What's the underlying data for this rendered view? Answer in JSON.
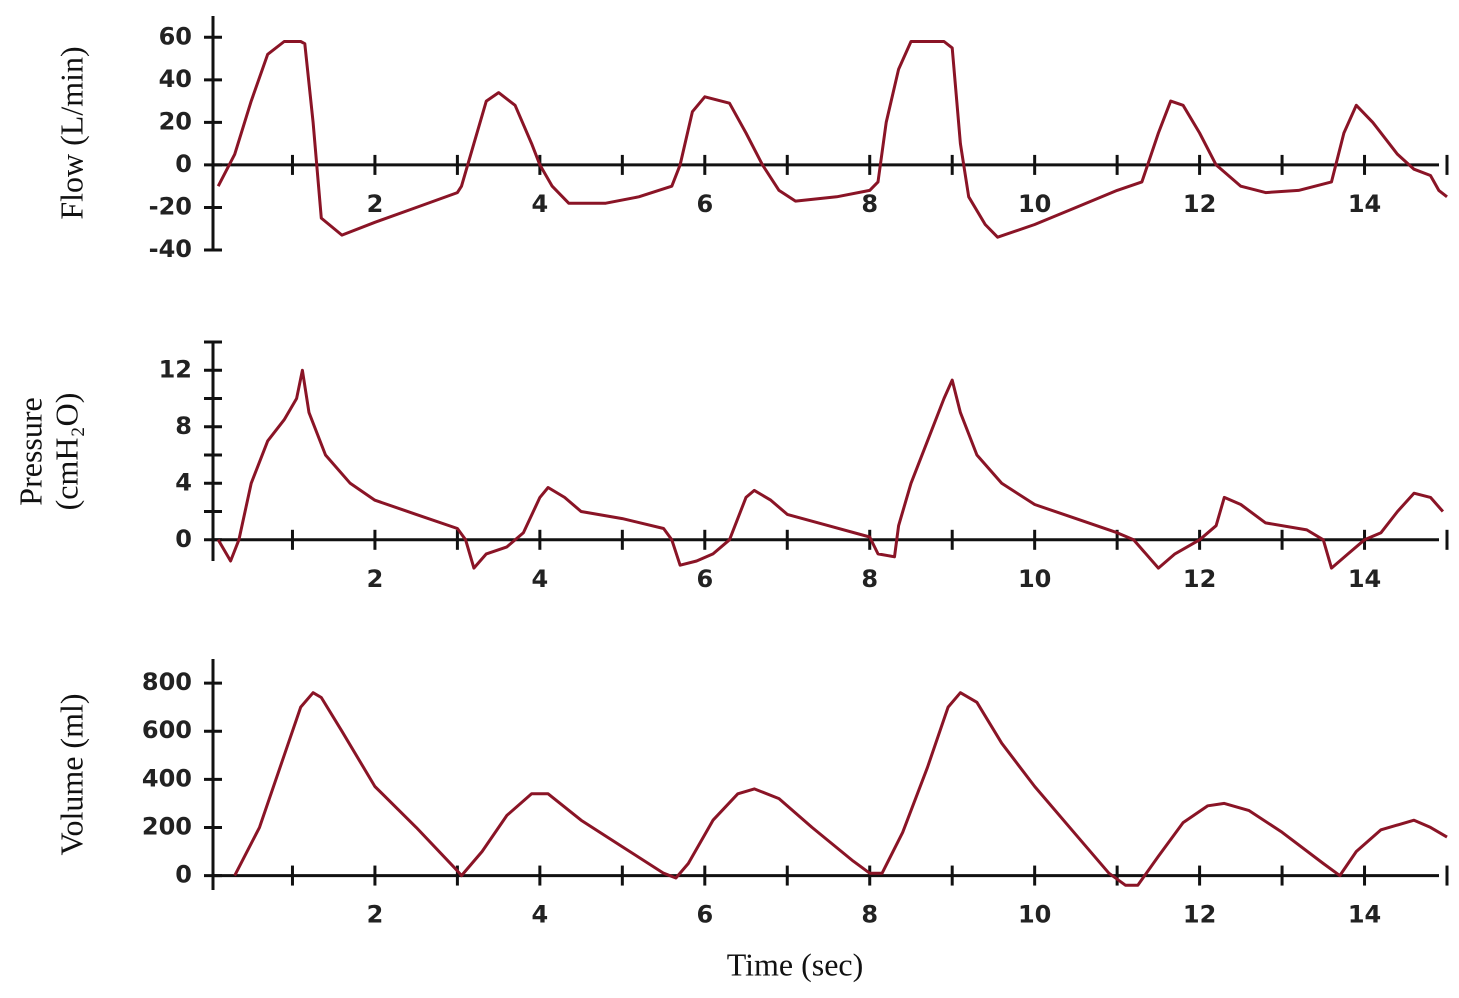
{
  "chart_data": [
    {
      "type": "line",
      "ylabel": "Flow (L/min)",
      "color": "#8a1426",
      "xlim": [
        0,
        15
      ],
      "xticks": [
        2,
        4,
        6,
        8,
        10,
        12,
        14
      ],
      "xminorticks": [
        1,
        3,
        5,
        7,
        9,
        11,
        13,
        15
      ],
      "ylim": [
        -40,
        70
      ],
      "yticks": [
        -40,
        -20,
        0,
        20,
        40,
        60
      ],
      "x": [
        0.1,
        0.3,
        0.5,
        0.7,
        0.9,
        1.1,
        1.15,
        1.25,
        1.35,
        1.6,
        2.0,
        2.5,
        3.0,
        3.05,
        3.2,
        3.35,
        3.5,
        3.7,
        3.9,
        4.0,
        4.15,
        4.35,
        4.8,
        5.2,
        5.6,
        5.7,
        5.85,
        6.0,
        6.3,
        6.5,
        6.7,
        6.9,
        7.1,
        7.6,
        8.0,
        8.1,
        8.2,
        8.35,
        8.5,
        8.9,
        9.0,
        9.1,
        9.2,
        9.4,
        9.55,
        10.0,
        10.5,
        11.0,
        11.3,
        11.5,
        11.65,
        11.8,
        12.0,
        12.2,
        12.5,
        12.8,
        13.2,
        13.6,
        13.75,
        13.9,
        14.1,
        14.4,
        14.6,
        14.8,
        14.9,
        15.0
      ],
      "values": [
        -10,
        5,
        30,
        52,
        58,
        58,
        57,
        20,
        -25,
        -33,
        -27,
        -20,
        -13,
        -10,
        10,
        30,
        34,
        28,
        10,
        0,
        -10,
        -18,
        -18,
        -15,
        -10,
        0,
        25,
        32,
        29,
        15,
        0,
        -12,
        -17,
        -15,
        -12,
        -8,
        20,
        45,
        58,
        58,
        55,
        10,
        -15,
        -28,
        -34,
        -28,
        -20,
        -12,
        -8,
        15,
        30,
        28,
        15,
        0,
        -10,
        -13,
        -12,
        -8,
        15,
        28,
        20,
        5,
        -2,
        -5,
        -12,
        -15
      ]
    },
    {
      "type": "line",
      "ylabel": [
        "Pressure",
        "(cmH₂O)"
      ],
      "color": "#8a1426",
      "xlim": [
        0,
        15
      ],
      "xticks": [
        2,
        4,
        6,
        8,
        10,
        12,
        14
      ],
      "xminorticks": [
        1,
        3,
        5,
        7,
        9,
        11,
        13,
        15
      ],
      "ylim": [
        -1.5,
        14
      ],
      "yticks": [
        0,
        4,
        8,
        12
      ],
      "yminorticks": [
        2,
        6,
        10,
        14
      ],
      "x": [
        0.1,
        0.25,
        0.35,
        0.5,
        0.7,
        0.9,
        1.05,
        1.12,
        1.2,
        1.4,
        1.7,
        2.0,
        2.5,
        3.0,
        3.1,
        3.2,
        3.35,
        3.6,
        3.8,
        4.0,
        4.1,
        4.3,
        4.5,
        5.0,
        5.5,
        5.6,
        5.7,
        5.9,
        6.1,
        6.3,
        6.5,
        6.6,
        6.8,
        7.0,
        7.5,
        8.0,
        8.1,
        8.3,
        8.35,
        8.5,
        8.7,
        8.9,
        9.0,
        9.1,
        9.3,
        9.6,
        10.0,
        10.5,
        11.0,
        11.2,
        11.5,
        11.7,
        12.0,
        12.2,
        12.3,
        12.5,
        12.8,
        13.3,
        13.5,
        13.6,
        13.8,
        14.0,
        14.2,
        14.4,
        14.6,
        14.8,
        14.95
      ],
      "values": [
        0,
        -1.5,
        0,
        4,
        7,
        8.5,
        10,
        12,
        9,
        6,
        4,
        2.8,
        1.8,
        0.8,
        0,
        -2,
        -1,
        -0.5,
        0.5,
        3,
        3.7,
        3,
        2,
        1.5,
        0.8,
        0,
        -1.8,
        -1.5,
        -1,
        0,
        3,
        3.5,
        2.8,
        1.8,
        1,
        0.2,
        -1,
        -1.2,
        1,
        4,
        7,
        10,
        11.3,
        9,
        6,
        4,
        2.5,
        1.5,
        0.5,
        0,
        -2,
        -1,
        0,
        1,
        3,
        2.5,
        1.2,
        0.7,
        0,
        -2,
        -1,
        0,
        0.5,
        2,
        3.3,
        3,
        2
      ]
    },
    {
      "type": "line",
      "ylabel": "Volume (ml)",
      "xlabel": "Time (sec)",
      "color": "#8a1426",
      "xlim": [
        0,
        15
      ],
      "xticks": [
        2,
        4,
        6,
        8,
        10,
        12,
        14
      ],
      "xminorticks": [
        1,
        3,
        5,
        7,
        9,
        11,
        13,
        15
      ],
      "ylim": [
        -60,
        900
      ],
      "yticks": [
        0,
        200,
        400,
        600,
        800
      ],
      "x": [
        0.3,
        0.6,
        0.9,
        1.1,
        1.25,
        1.35,
        1.6,
        2.0,
        2.5,
        3.0,
        3.05,
        3.3,
        3.6,
        3.9,
        4.1,
        4.5,
        5.0,
        5.5,
        5.65,
        5.8,
        6.1,
        6.4,
        6.6,
        6.9,
        7.3,
        7.8,
        8.0,
        8.15,
        8.4,
        8.7,
        8.95,
        9.1,
        9.3,
        9.6,
        10.0,
        10.5,
        10.9,
        11.1,
        11.25,
        11.5,
        11.8,
        12.1,
        12.3,
        12.6,
        13.0,
        13.5,
        13.7,
        13.9,
        14.2,
        14.6,
        14.8,
        15.0
      ],
      "values": [
        0,
        200,
        500,
        700,
        760,
        740,
        600,
        370,
        200,
        20,
        0,
        100,
        250,
        340,
        340,
        230,
        120,
        10,
        -10,
        50,
        230,
        340,
        360,
        320,
        200,
        60,
        10,
        10,
        180,
        450,
        700,
        760,
        720,
        550,
        370,
        170,
        10,
        -40,
        -40,
        80,
        220,
        290,
        300,
        270,
        180,
        50,
        0,
        100,
        190,
        230,
        200,
        160
      ]
    }
  ]
}
